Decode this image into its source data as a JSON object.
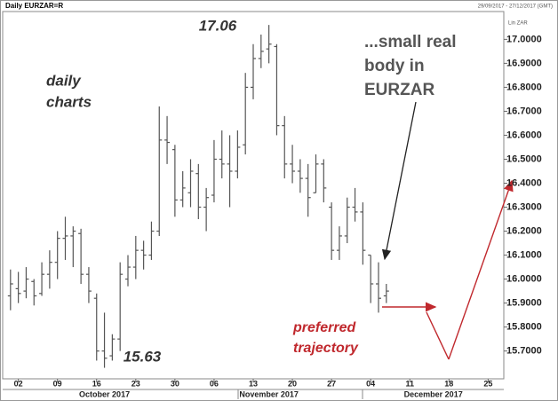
{
  "chart_data": {
    "type": "ohlc",
    "title": "Daily EURZAR=R",
    "subtitle": "29/09/2017 - 27/12/2017 (GMT)",
    "axis_label": "Lin ZAR",
    "color": "#555555",
    "x": [
      "2017-09-29",
      "2017-10-02",
      "2017-10-03",
      "2017-10-04",
      "2017-10-05",
      "2017-10-06",
      "2017-10-09",
      "2017-10-10",
      "2017-10-11",
      "2017-10-12",
      "2017-10-13",
      "2017-10-16",
      "2017-10-17",
      "2017-10-18",
      "2017-10-19",
      "2017-10-20",
      "2017-10-23",
      "2017-10-24",
      "2017-10-25",
      "2017-10-26",
      "2017-10-27",
      "2017-10-30",
      "2017-10-31",
      "2017-11-01",
      "2017-11-02",
      "2017-11-03",
      "2017-11-06",
      "2017-11-07",
      "2017-11-08",
      "2017-11-09",
      "2017-11-10",
      "2017-11-13",
      "2017-11-14",
      "2017-11-15",
      "2017-11-16",
      "2017-11-17",
      "2017-11-20",
      "2017-11-21",
      "2017-11-22",
      "2017-11-23",
      "2017-11-24",
      "2017-11-27",
      "2017-11-28",
      "2017-11-29",
      "2017-11-30",
      "2017-12-01",
      "2017-12-04",
      "2017-12-05",
      "2017-12-06"
    ],
    "open": [
      15.93,
      15.96,
      15.95,
      15.99,
      15.94,
      16.02,
      16.07,
      16.17,
      16.18,
      16.19,
      16.02,
      15.92,
      15.7,
      15.68,
      15.75,
      16.0,
      16.05,
      16.12,
      16.1,
      16.2,
      16.58,
      16.54,
      16.33,
      16.36,
      16.44,
      16.3,
      16.35,
      16.5,
      16.48,
      16.45,
      16.56,
      16.8,
      16.92,
      16.96,
      16.97,
      16.64,
      16.48,
      16.45,
      16.42,
      16.36,
      16.48,
      16.3,
      16.12,
      16.18,
      16.3,
      16.28,
      16.1,
      15.98,
      15.93
    ],
    "high": [
      16.04,
      16.03,
      16.05,
      16.0,
      16.07,
      16.12,
      16.2,
      16.26,
      16.22,
      16.21,
      16.05,
      15.94,
      15.86,
      15.77,
      16.07,
      16.1,
      16.18,
      16.16,
      16.24,
      16.72,
      16.68,
      16.56,
      16.45,
      16.5,
      16.48,
      16.38,
      16.58,
      16.62,
      16.6,
      16.62,
      16.86,
      16.98,
      17.02,
      17.06,
      16.98,
      16.68,
      16.56,
      16.5,
      16.48,
      16.52,
      16.5,
      16.32,
      16.22,
      16.34,
      16.38,
      16.32,
      16.1,
      16.07,
      15.98
    ],
    "low": [
      15.87,
      15.9,
      15.92,
      15.89,
      15.93,
      15.96,
      16.0,
      16.08,
      16.05,
      15.98,
      15.9,
      15.66,
      15.63,
      15.66,
      15.7,
      15.97,
      16.0,
      16.04,
      16.08,
      16.18,
      16.48,
      16.26,
      16.3,
      16.3,
      16.25,
      16.2,
      16.32,
      16.42,
      16.3,
      16.42,
      16.52,
      16.75,
      16.88,
      16.9,
      16.6,
      16.42,
      16.4,
      16.36,
      16.26,
      16.36,
      16.32,
      16.08,
      16.08,
      16.15,
      16.24,
      16.06,
      15.9,
      15.86,
      15.9
    ],
    "close": [
      15.98,
      15.94,
      16.0,
      15.93,
      16.02,
      16.07,
      16.17,
      16.18,
      16.2,
      16.02,
      15.95,
      15.7,
      15.67,
      15.75,
      16.02,
      16.05,
      16.12,
      16.1,
      16.2,
      16.58,
      16.57,
      16.33,
      16.38,
      16.45,
      16.3,
      16.34,
      16.5,
      16.48,
      16.45,
      16.55,
      16.8,
      16.92,
      16.95,
      16.98,
      16.64,
      16.48,
      16.45,
      16.42,
      16.34,
      16.48,
      16.38,
      16.12,
      16.18,
      16.3,
      16.28,
      16.12,
      15.98,
      15.92,
      15.95
    ],
    "xlim": [
      "2017-09-28",
      "2017-12-27"
    ],
    "xticks": [
      {
        "value": "2017-10-02",
        "label": "02"
      },
      {
        "value": "2017-10-09",
        "label": "09"
      },
      {
        "value": "2017-10-16",
        "label": "16"
      },
      {
        "value": "2017-10-23",
        "label": "23"
      },
      {
        "value": "2017-10-30",
        "label": "30"
      },
      {
        "value": "2017-11-06",
        "label": "06"
      },
      {
        "value": "2017-11-13",
        "label": "13"
      },
      {
        "value": "2017-11-20",
        "label": "20"
      },
      {
        "value": "2017-11-27",
        "label": "27"
      },
      {
        "value": "2017-12-04",
        "label": "04"
      },
      {
        "value": "2017-12-11",
        "label": "11"
      },
      {
        "value": "2017-12-18",
        "label": "18"
      },
      {
        "value": "2017-12-25",
        "label": "25"
      }
    ],
    "month_labels": [
      {
        "value": "2017-10-17",
        "label": "October 2017"
      },
      {
        "value": "2017-11-15",
        "label": "November 2017"
      },
      {
        "value": "2017-12-14",
        "label": "December 2017"
      }
    ],
    "ylim": [
      15.584,
      17.116
    ],
    "yticks": [
      {
        "value": 15.7,
        "label": "15.7000"
      },
      {
        "value": 15.8,
        "label": "15.8000"
      },
      {
        "value": 15.9,
        "label": "15.9000"
      },
      {
        "value": 16.0,
        "label": "16.0000"
      },
      {
        "value": 16.1,
        "label": "16.1000"
      },
      {
        "value": 16.2,
        "label": "16.2000"
      },
      {
        "value": 16.3,
        "label": "16.3000"
      },
      {
        "value": 16.4,
        "label": "16.4000"
      },
      {
        "value": 16.5,
        "label": "16.5000"
      },
      {
        "value": 16.6,
        "label": "16.6000"
      },
      {
        "value": 16.7,
        "label": "16.7000"
      },
      {
        "value": 16.8,
        "label": "16.8000"
      },
      {
        "value": 16.9,
        "label": "16.9000"
      },
      {
        "value": 17.0,
        "label": "17.0000"
      }
    ],
    "annotations": {
      "high": "17.06",
      "low": "15.63",
      "daily": [
        "daily",
        "charts"
      ],
      "note": [
        "...small real",
        "body in",
        "EURZAR"
      ],
      "trajectory": [
        "preferred",
        "trajectory"
      ]
    }
  }
}
